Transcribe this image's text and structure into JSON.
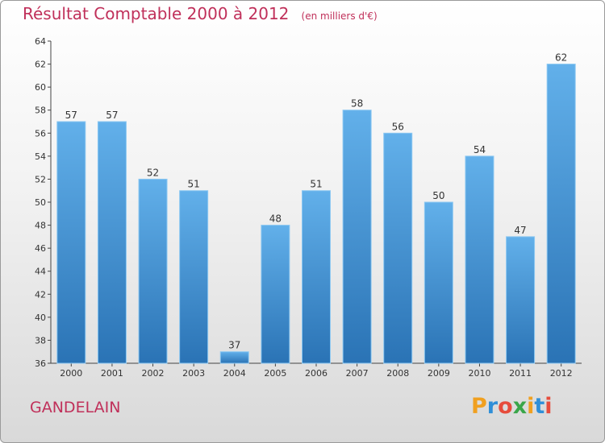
{
  "title": "Résultat Comptable 2000 à 2012",
  "subtitle": "(en milliers d'€)",
  "commune": "GANDELAIN",
  "logo": {
    "text": "Proxiti",
    "colors": [
      "#f0a020",
      "#2f8fd8",
      "#e74c3c",
      "#3aa64a",
      "#f0a020",
      "#2f8fd8",
      "#e74c3c"
    ]
  },
  "colors": {
    "bar_top": "#62b0ea",
    "bar_bottom": "#2a73b5",
    "title": "#c0305a"
  },
  "chart_data": {
    "type": "bar",
    "categories": [
      "2000",
      "2001",
      "2002",
      "2003",
      "2004",
      "2005",
      "2006",
      "2007",
      "2008",
      "2009",
      "2010",
      "2011",
      "2012"
    ],
    "values": [
      57,
      57,
      52,
      51,
      37,
      48,
      51,
      58,
      56,
      50,
      54,
      47,
      62
    ],
    "ylim": [
      36,
      64
    ],
    "yticks": [
      36,
      38,
      40,
      42,
      44,
      46,
      48,
      50,
      52,
      54,
      56,
      58,
      60,
      62,
      64
    ],
    "grid": false
  }
}
